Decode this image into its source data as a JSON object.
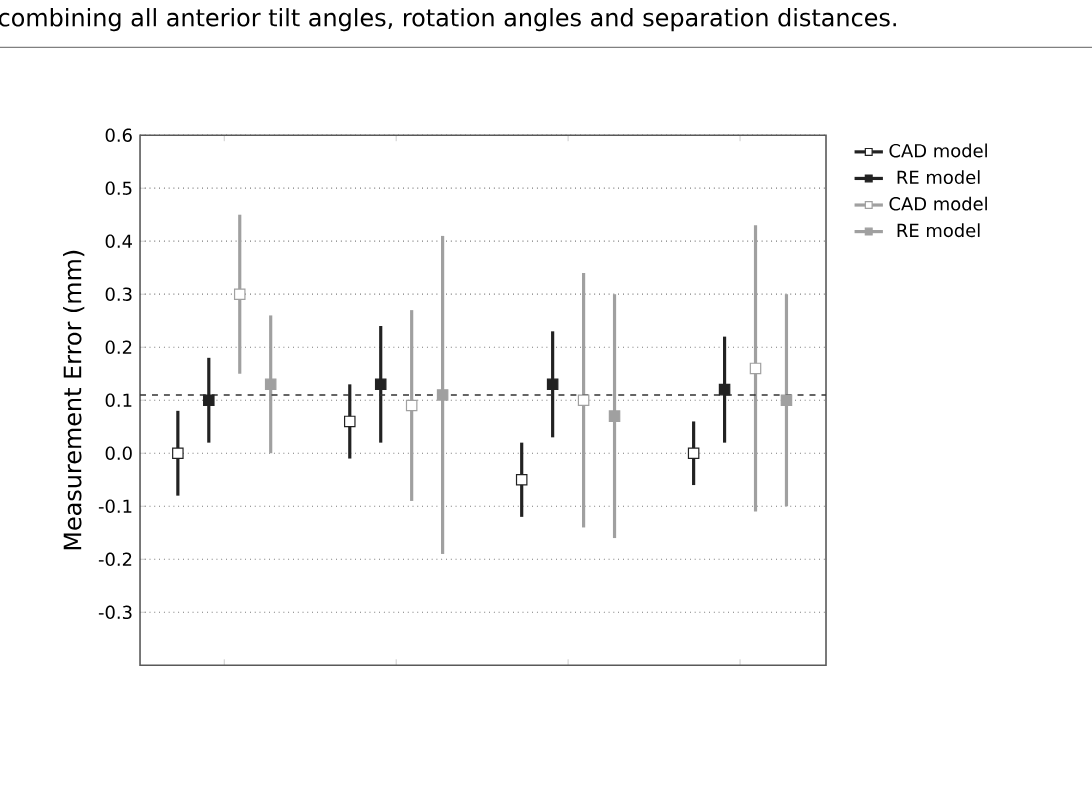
{
  "chart_data": {
    "type": "scatter",
    "title": "combining all anterior tilt angles, rotation angles and separation distances.",
    "ylabel": "Measurement Error (mm)",
    "categories": [
      null,
      null,
      null,
      null
    ],
    "ylim": [
      -0.4,
      0.6
    ],
    "yticks": [
      -0.3,
      -0.2,
      -0.1,
      {
        "value": 0,
        "label": "0.0"
      },
      0.1,
      0.2,
      0.3,
      0.4,
      0.5,
      0.6
    ],
    "grid": "y",
    "legend": "right",
    "tick_labels": "y",
    "marker": "square",
    "ref_lines": [
      {
        "axis": "y",
        "value": 0.11,
        "color": "#333333",
        "line_style": "dashed"
      }
    ],
    "series": [
      {
        "name": "CAD model",
        "color": "#222222",
        "values": [
          0.0,
          0.06,
          -0.05,
          0.0
        ],
        "errors": [
          [
            -0.08,
            0.08
          ],
          [
            -0.01,
            0.13
          ],
          [
            -0.12,
            0.02
          ],
          [
            -0.06,
            0.06
          ]
        ]
      },
      {
        "name": "RE model",
        "color": "#222222",
        "values": [
          0.1,
          0.13,
          0.13,
          0.12
        ],
        "errors": [
          [
            0.02,
            0.18
          ],
          [
            0.02,
            0.24
          ],
          [
            0.03,
            0.23
          ],
          [
            0.02,
            0.22
          ]
        ]
      },
      {
        "name": "CAD model",
        "color": "#a0a0a0",
        "values": [
          0.3,
          0.09,
          0.1,
          0.16
        ],
        "errors": [
          [
            0.15,
            0.45
          ],
          [
            -0.09,
            0.27
          ],
          [
            -0.14,
            0.34
          ],
          [
            -0.11,
            0.43
          ]
        ]
      },
      {
        "name": "RE model",
        "color": "#a0a0a0",
        "values": [
          0.13,
          0.11,
          0.07,
          0.1
        ],
        "errors": [
          [
            0.0,
            0.26
          ],
          [
            -0.19,
            0.41
          ],
          [
            -0.16,
            0.3
          ],
          [
            -0.1,
            0.3
          ]
        ]
      }
    ]
  }
}
